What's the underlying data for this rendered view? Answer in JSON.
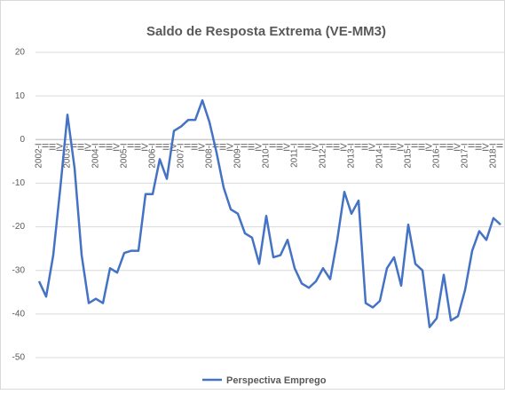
{
  "chart_data": {
    "type": "line",
    "title": "Saldo de Resposta Extrema (VE-MM3)",
    "categories": [
      "2002-I",
      "II",
      "III",
      "IV",
      "2003-I",
      "II",
      "III",
      "IV",
      "2004-I",
      "II",
      "III",
      "IV",
      "2005-I",
      "II",
      "III",
      "IV",
      "2006-I",
      "II",
      "III",
      "IV",
      "2007-I",
      "II",
      "III",
      "IV",
      "2008-I",
      "II",
      "III",
      "IV",
      "2009-I",
      "II",
      "III",
      "IV",
      "2010-I",
      "II",
      "III",
      "IV",
      "2011-I",
      "II",
      "III",
      "IV",
      "2012-I",
      "II",
      "III",
      "IV",
      "2013-I",
      "II",
      "III",
      "IV",
      "2014-I",
      "II",
      "III",
      "IV",
      "2015-I",
      "II",
      "III",
      "IV",
      "2016-I",
      "II",
      "III",
      "IV",
      "2017-I",
      "II",
      "III",
      "IV",
      "2018-I",
      "II"
    ],
    "series": [
      {
        "name": "Perspectiva Emprego",
        "color": "#4472c4",
        "values": [
          -32.5,
          -36,
          -26.5,
          -11,
          5.7,
          -6.5,
          -26.5,
          -37.5,
          -36.5,
          -37.5,
          -29.5,
          -30.5,
          -26,
          -25.5,
          -25.5,
          -12.5,
          -12.5,
          -4.5,
          -9,
          2,
          3,
          4.5,
          4.5,
          9,
          4,
          -3,
          -11,
          -16,
          -17,
          -21.5,
          -22.5,
          -28.5,
          -17.5,
          -27,
          -26.5,
          -23,
          -29.5,
          -33,
          -34,
          -32.5,
          -29.5,
          -32,
          -23,
          -12,
          -17,
          -14,
          -37.5,
          -38.5,
          -37,
          -29.5,
          -27,
          -33.5,
          -19.5,
          -28.5,
          -30,
          -43,
          -41,
          -31,
          -41.5,
          -40.5,
          -34.5,
          -25.5,
          -21,
          -23,
          -18,
          -19.5
        ]
      }
    ],
    "ylim": [
      -55,
      22
    ],
    "yticks": [
      20,
      10,
      0,
      -10,
      -20,
      -30,
      -40,
      -50
    ],
    "grid": true
  }
}
